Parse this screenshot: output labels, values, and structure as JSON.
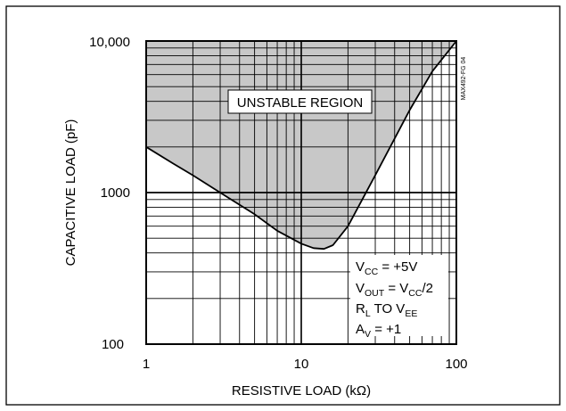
{
  "chart_data": {
    "type": "line",
    "xlabel": "RESISTIVE LOAD (kΩ)",
    "ylabel": "CAPACITIVE LOAD (pF)",
    "x_scale": "log",
    "y_scale": "log",
    "xlim": [
      1,
      100
    ],
    "ylim": [
      100,
      10000
    ],
    "x_tick_labels": [
      {
        "value": 1,
        "label": "1"
      },
      {
        "value": 10,
        "label": "10"
      },
      {
        "value": 100,
        "label": "100"
      }
    ],
    "y_tick_labels": [
      {
        "value": 100,
        "label": "100"
      },
      {
        "value": 1000,
        "label": "1000"
      },
      {
        "value": 10000,
        "label": "10,000"
      }
    ],
    "grid": true,
    "series": [
      {
        "x": [
          1,
          1.5,
          2,
          3,
          5,
          7,
          10,
          12,
          14,
          16,
          20,
          30,
          50,
          70,
          100
        ],
        "y": [
          2000,
          1550,
          1300,
          1000,
          720,
          560,
          460,
          430,
          425,
          450,
          600,
          1300,
          3500,
          6300,
          10000
        ]
      }
    ],
    "shaded_region": {
      "label": "UNSTABLE REGION",
      "bounds": "above curve"
    },
    "annotations": {
      "figure_id": "MAX492-FG 04",
      "conditions": [
        {
          "main": "V",
          "sub": "CC",
          "rest": " = +5V"
        },
        {
          "main": "V",
          "sub": "OUT",
          "rest": " = V",
          "sub2": "CC",
          "rest2": "/2"
        },
        {
          "main": "R",
          "sub": "L",
          "rest": " TO V",
          "sub2": "EE",
          "rest2": ""
        },
        {
          "main": "A",
          "sub": "V",
          "rest": " = +1"
        }
      ]
    }
  }
}
